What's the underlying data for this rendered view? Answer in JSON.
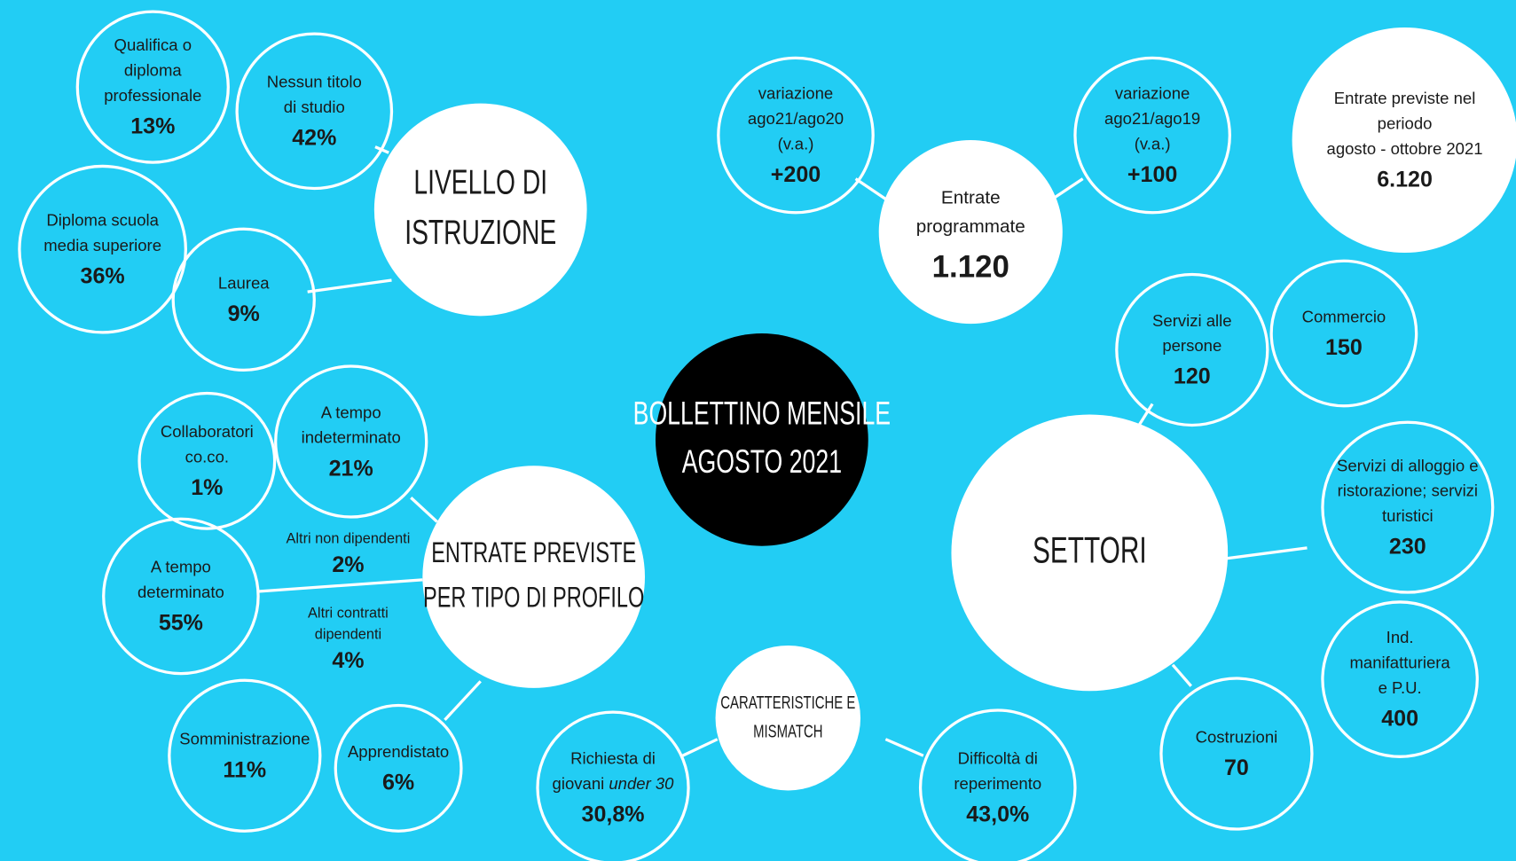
{
  "center": {
    "lines": [
      "BOLLETTINO MENSILE",
      "AGOSTO 2021"
    ]
  },
  "groups": [
    {
      "title": [
        "LIVELLO DI",
        "ISTRUZIONE"
      ],
      "items": [
        {
          "lines": [
            "Qualifica o",
            "diploma",
            "professionale"
          ],
          "value": "13%"
        },
        {
          "lines": [
            "Nessun titolo",
            "di studio"
          ],
          "value": "42%"
        },
        {
          "lines": [
            "Diploma scuola",
            "media superiore"
          ],
          "value": "36%"
        },
        {
          "lines": [
            "Laurea"
          ],
          "value": "9%"
        }
      ]
    },
    {
      "title": [
        "ENTRATE PREVISTE",
        "PER TIPO DI PROFILO"
      ],
      "items": [
        {
          "lines": [
            "Collaboratori",
            "co.co."
          ],
          "value": "1%"
        },
        {
          "lines": [
            "A tempo",
            "indeterminato"
          ],
          "value": "21%"
        },
        {
          "lines": [
            "Altri non dipendenti"
          ],
          "value": "2%"
        },
        {
          "lines": [
            "A tempo",
            "determinato"
          ],
          "value": "55%"
        },
        {
          "lines": [
            "Altri contratti",
            "dipendenti"
          ],
          "value": "4%"
        },
        {
          "lines": [
            "Somministrazione"
          ],
          "value": "11%"
        },
        {
          "lines": [
            "Apprendistato"
          ],
          "value": "6%"
        }
      ]
    },
    {
      "title": [
        "Entrate",
        "programmate"
      ],
      "value": "1.120",
      "items": [
        {
          "lines": [
            "variazione",
            "ago21/ago20",
            "(v.a.)"
          ],
          "value": "+200"
        },
        {
          "lines": [
            "variazione",
            "ago21/ago19",
            "(v.a.)"
          ],
          "value": "+100"
        }
      ]
    },
    {
      "title": [
        "SETTORI"
      ],
      "items": [
        {
          "lines": [
            "Servizi alle",
            "persone"
          ],
          "value": "120"
        },
        {
          "lines": [
            "Commercio"
          ],
          "value": "150"
        },
        {
          "lines": [
            "Servizi di alloggio e",
            "ristorazione; servizi",
            "turistici"
          ],
          "value": "230"
        },
        {
          "lines": [
            "Ind.",
            "manifatturiera",
            "e P.U."
          ],
          "value": "400"
        },
        {
          "lines": [
            "Costruzioni"
          ],
          "value": "70"
        }
      ]
    },
    {
      "title": [
        "CARATTERISTICHE E",
        "MISMATCH"
      ],
      "items": [
        {
          "lines": [
            "Richiesta di",
            [
              "giovani ",
              "under 30"
            ]
          ],
          "value": "30,8%"
        },
        {
          "lines": [
            "Difficoltà di",
            "reperimento"
          ],
          "value": "43,0%"
        }
      ]
    }
  ],
  "periodo": {
    "lines": [
      "Entrate previste nel",
      "periodo",
      "agosto - ottobre 2021"
    ],
    "value": "6.120"
  }
}
